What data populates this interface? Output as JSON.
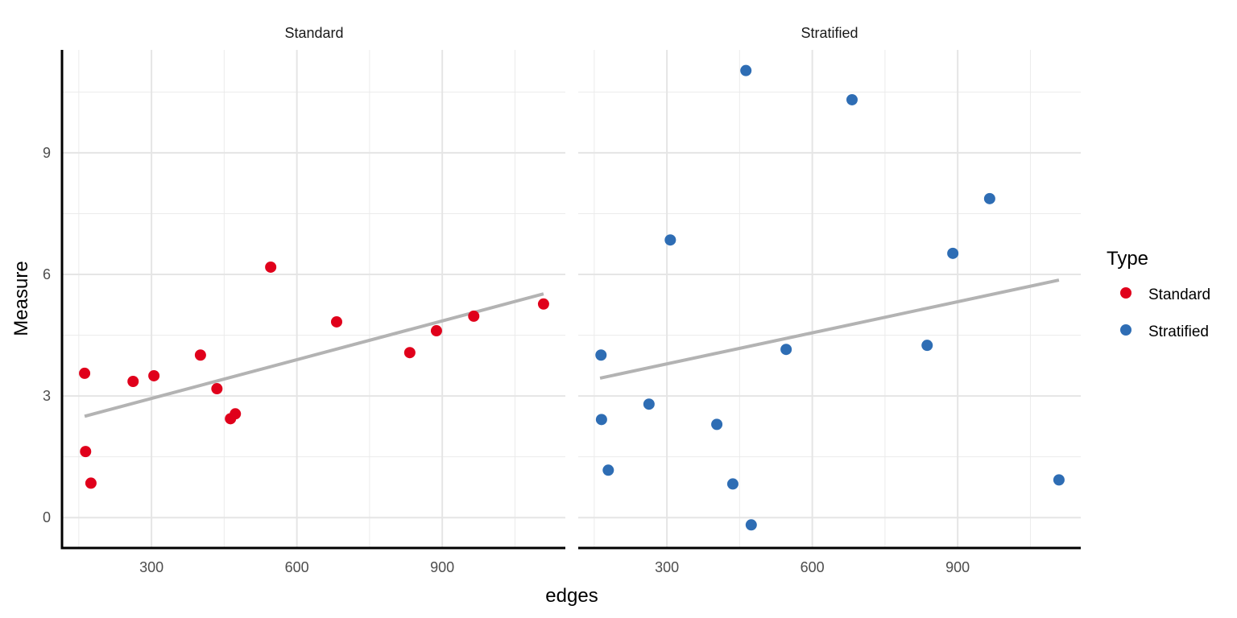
{
  "chart_data": {
    "type": "scatter",
    "facets": [
      "Standard",
      "Stratified"
    ],
    "xlabel": "edges",
    "ylabel": "Measure",
    "xlim": [
      117,
      1154
    ],
    "ylim": [
      -0.75,
      11.54
    ],
    "xticks": [
      300,
      600,
      900
    ],
    "yticks": [
      0,
      3,
      6,
      9
    ],
    "grid": true,
    "legend": {
      "title": "Type",
      "placement": "right",
      "entries": [
        {
          "label": "Standard",
          "color": "#E0001B"
        },
        {
          "label": "Stratified",
          "color": "#2E6DB4"
        }
      ]
    },
    "series": [
      {
        "name": "Standard",
        "color": "#E0001B",
        "x": [
          162,
          164,
          175,
          262,
          305,
          401,
          435,
          463,
          473,
          546,
          682,
          833,
          888,
          965,
          1109
        ],
        "y": [
          3.56,
          1.63,
          0.85,
          3.36,
          3.5,
          4.01,
          3.18,
          2.44,
          2.56,
          6.18,
          4.83,
          4.07,
          4.61,
          4.97,
          5.27
        ],
        "trend": {
          "x": [
            162,
            1109
          ],
          "y": [
            2.5,
            5.52
          ]
        }
      },
      {
        "name": "Stratified",
        "color": "#2E6DB4",
        "x": [
          164,
          165,
          179,
          263,
          307,
          403,
          436,
          463,
          474,
          546,
          682,
          837,
          890,
          966,
          1109
        ],
        "y": [
          4.01,
          2.42,
          1.17,
          2.8,
          6.85,
          2.3,
          0.83,
          11.03,
          -0.18,
          4.15,
          10.31,
          4.25,
          6.52,
          7.87,
          0.93
        ],
        "trend": {
          "x": [
            162,
            1109
          ],
          "y": [
            3.44,
            5.86
          ]
        }
      }
    ],
    "trend_color": "#B3B3B3"
  }
}
